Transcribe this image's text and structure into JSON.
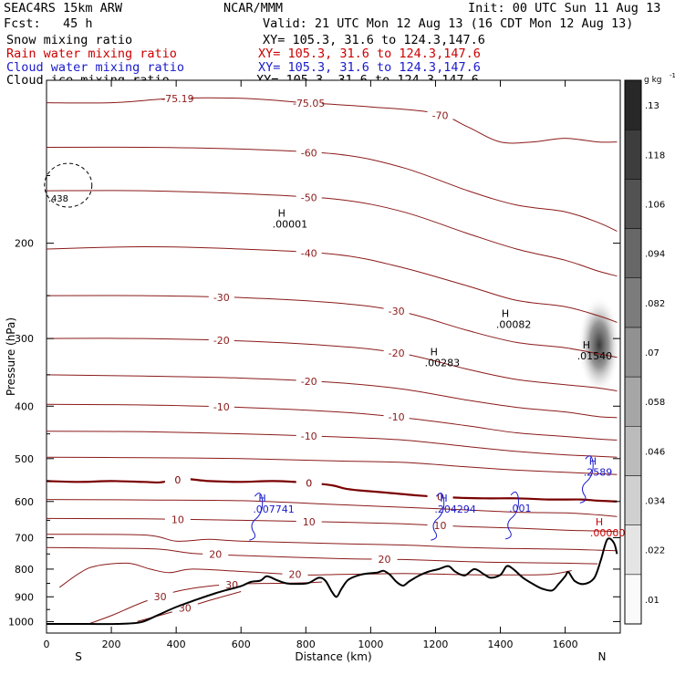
{
  "header": {
    "model": "SEAC4RS 15km ARW",
    "center": "NCAR/MMM",
    "init": "Init: 00 UTC Sun 11 Aug 13",
    "fcst": "Fcst:   45 h",
    "valid": "Valid: 21 UTC Mon 12 Aug 13 (16 CDT Mon 12 Aug 13)",
    "fields": [
      {
        "label": "Snow mixing ratio",
        "xy": "XY= 105.3, 31.6 to 124.3,147.6",
        "color": "#000000"
      },
      {
        "label": "Rain water mixing ratio",
        "xy": "XY= 105.3, 31.6 to 124.3,147.6",
        "color": "#cc0000"
      },
      {
        "label": "Cloud water mixing ratio",
        "xy": "XY= 105.3, 31.6 to 124.3,147.6",
        "color": "#1a1acc"
      },
      {
        "label": "Cloud ice mixing ratio",
        "xy": "XY= 105.3, 31.6 to 124.3,147.6",
        "color": "#000000"
      }
    ]
  },
  "colors": {
    "temperature": "#8b1a1a",
    "freezing": "#7a0000",
    "terrain": "#000000",
    "cloudwater": "#1a1acc",
    "rain": "#cc0000"
  },
  "chart_data": {
    "type": "contour cross-section",
    "xlabel": "Distance (km)",
    "ylabel": "Pressure (hPa)",
    "xlim": [
      0,
      1770
    ],
    "ylim": [
      1050,
      100
    ],
    "x_ticks": [
      0,
      200,
      400,
      600,
      800,
      1000,
      1200,
      1400,
      1600
    ],
    "y_ticks": [
      200,
      300,
      400,
      500,
      600,
      700,
      800,
      900,
      1000
    ],
    "x_end_labels": {
      "left": "S",
      "right": "N"
    },
    "colorbar": {
      "unit": "g kg",
      "unit_exp": "-1",
      "labels": [
        ".01",
        ".022",
        ".034",
        ".046",
        ".058",
        ".07",
        ".082",
        ".094",
        ".106",
        ".118",
        ".13"
      ]
    },
    "terrain": [
      [
        0,
        1010
      ],
      [
        120,
        1010
      ],
      [
        220,
        1010
      ],
      [
        290,
        1003
      ],
      [
        340,
        975
      ],
      [
        400,
        940
      ],
      [
        460,
        912
      ],
      [
        520,
        887
      ],
      [
        560,
        873
      ],
      [
        600,
        860
      ],
      [
        630,
        845
      ],
      [
        660,
        840
      ],
      [
        680,
        825
      ],
      [
        710,
        838
      ],
      [
        740,
        850
      ],
      [
        780,
        852
      ],
      [
        810,
        848
      ],
      [
        840,
        830
      ],
      [
        860,
        840
      ],
      [
        880,
        880
      ],
      [
        895,
        900
      ],
      [
        910,
        870
      ],
      [
        930,
        838
      ],
      [
        960,
        822
      ],
      [
        990,
        815
      ],
      [
        1020,
        812
      ],
      [
        1040,
        806
      ],
      [
        1060,
        820
      ],
      [
        1080,
        845
      ],
      [
        1100,
        858
      ],
      [
        1120,
        842
      ],
      [
        1150,
        822
      ],
      [
        1180,
        808
      ],
      [
        1210,
        800
      ],
      [
        1240,
        790
      ],
      [
        1260,
        808
      ],
      [
        1290,
        822
      ],
      [
        1320,
        800
      ],
      [
        1350,
        818
      ],
      [
        1370,
        830
      ],
      [
        1400,
        820
      ],
      [
        1420,
        790
      ],
      [
        1440,
        800
      ],
      [
        1470,
        830
      ],
      [
        1500,
        852
      ],
      [
        1530,
        870
      ],
      [
        1560,
        876
      ],
      [
        1580,
        852
      ],
      [
        1600,
        825
      ],
      [
        1610,
        810
      ],
      [
        1630,
        842
      ],
      [
        1660,
        852
      ],
      [
        1690,
        830
      ],
      [
        1710,
        770
      ],
      [
        1730,
        705
      ],
      [
        1750,
        715
      ],
      [
        1760,
        750
      ]
    ],
    "isotherms": [
      {
        "label_values": [
          "-75.19",
          "-75.05",
          "-70"
        ],
        "points": [
          [
            0,
            110
          ],
          [
            200,
            110
          ],
          [
            400,
            108
          ],
          [
            600,
            108
          ],
          [
            800,
            110
          ],
          [
            1000,
            112
          ],
          [
            1200,
            115
          ],
          [
            1300,
            122
          ],
          [
            1400,
            130
          ],
          [
            1500,
            130
          ],
          [
            1600,
            128
          ],
          [
            1700,
            130
          ],
          [
            1760,
            130
          ]
        ]
      },
      {
        "label_values": [
          "-60"
        ],
        "points": [
          [
            0,
            133
          ],
          [
            300,
            133
          ],
          [
            600,
            134
          ],
          [
            900,
            137
          ],
          [
            1100,
            145
          ],
          [
            1300,
            160
          ],
          [
            1450,
            170
          ],
          [
            1600,
            175
          ],
          [
            1700,
            183
          ],
          [
            1760,
            190
          ]
        ]
      },
      {
        "label_values": [
          "-50"
        ],
        "points": [
          [
            0,
            160
          ],
          [
            300,
            160
          ],
          [
            600,
            162
          ],
          [
            900,
            166
          ],
          [
            1100,
            175
          ],
          [
            1300,
            192
          ],
          [
            1450,
            205
          ],
          [
            1600,
            215
          ],
          [
            1700,
            225
          ],
          [
            1760,
            230
          ]
        ]
      },
      {
        "label_values": [
          "-40"
        ],
        "points": [
          [
            0,
            205
          ],
          [
            300,
            203
          ],
          [
            600,
            205
          ],
          [
            900,
            210
          ],
          [
            1100,
            222
          ],
          [
            1300,
            240
          ],
          [
            1450,
            255
          ],
          [
            1600,
            262
          ],
          [
            1700,
            272
          ],
          [
            1760,
            280
          ]
        ]
      },
      {
        "label_values": [
          "-30",
          "-30"
        ],
        "points": [
          [
            0,
            250
          ],
          [
            300,
            250
          ],
          [
            600,
            252
          ],
          [
            900,
            258
          ],
          [
            1100,
            268
          ],
          [
            1300,
            290
          ],
          [
            1450,
            305
          ],
          [
            1600,
            312
          ],
          [
            1700,
            320
          ],
          [
            1760,
            325
          ]
        ]
      },
      {
        "label_values": [
          "-20",
          "-20"
        ],
        "points": [
          [
            0,
            300
          ],
          [
            300,
            300
          ],
          [
            600,
            303
          ],
          [
            900,
            310
          ],
          [
            1100,
            320
          ],
          [
            1300,
            342
          ],
          [
            1450,
            357
          ],
          [
            1600,
            365
          ],
          [
            1700,
            370
          ],
          [
            1760,
            375
          ]
        ]
      },
      {
        "label_values": [
          "-20"
        ],
        "points": [
          [
            0,
            350
          ],
          [
            300,
            352
          ],
          [
            600,
            355
          ],
          [
            900,
            362
          ],
          [
            1100,
            372
          ],
          [
            1300,
            390
          ],
          [
            1450,
            402
          ],
          [
            1600,
            410
          ],
          [
            1700,
            418
          ],
          [
            1760,
            420
          ]
        ]
      },
      {
        "label_values": [
          "-10",
          "-10"
        ],
        "points": [
          [
            0,
            397
          ],
          [
            300,
            398
          ],
          [
            600,
            402
          ],
          [
            900,
            410
          ],
          [
            1100,
            420
          ],
          [
            1300,
            435
          ],
          [
            1450,
            448
          ],
          [
            1600,
            455
          ],
          [
            1700,
            460
          ],
          [
            1760,
            462
          ]
        ]
      },
      {
        "label_values": [
          "-10"
        ],
        "points": [
          [
            0,
            445
          ],
          [
            300,
            446
          ],
          [
            600,
            450
          ],
          [
            900,
            456
          ],
          [
            1100,
            462
          ],
          [
            1300,
            475
          ],
          [
            1450,
            485
          ],
          [
            1600,
            492
          ],
          [
            1700,
            495
          ],
          [
            1760,
            497
          ]
        ]
      },
      {
        "label_values": [],
        "points": [
          [
            0,
            497
          ],
          [
            300,
            498
          ],
          [
            600,
            500
          ],
          [
            900,
            505
          ],
          [
            1100,
            508
          ],
          [
            1300,
            518
          ],
          [
            1450,
            525
          ],
          [
            1600,
            530
          ],
          [
            1700,
            533
          ],
          [
            1760,
            535
          ]
        ]
      },
      {
        "label_values": [
          "0",
          "0",
          "0"
        ],
        "freezing": true,
        "points": [
          [
            0,
            550
          ],
          [
            100,
            552
          ],
          [
            200,
            550
          ],
          [
            300,
            552
          ],
          [
            350,
            553
          ],
          [
            420,
            545
          ],
          [
            500,
            550
          ],
          [
            600,
            552
          ],
          [
            700,
            550
          ],
          [
            800,
            554
          ],
          [
            880,
            560
          ],
          [
            920,
            568
          ],
          [
            960,
            572
          ],
          [
            1050,
            578
          ],
          [
            1150,
            585
          ],
          [
            1250,
            590
          ],
          [
            1350,
            592
          ],
          [
            1450,
            592
          ],
          [
            1550,
            595
          ],
          [
            1650,
            595
          ],
          [
            1700,
            598
          ],
          [
            1760,
            600
          ]
        ]
      },
      {
        "label_values": [],
        "points": [
          [
            0,
            595
          ],
          [
            300,
            596
          ],
          [
            600,
            598
          ],
          [
            900,
            608
          ],
          [
            1100,
            615
          ],
          [
            1300,
            622
          ],
          [
            1450,
            628
          ],
          [
            1600,
            630
          ],
          [
            1700,
            635
          ],
          [
            1760,
            640
          ]
        ]
      },
      {
        "label_values": [
          "10",
          "10",
          "10"
        ],
        "points": [
          [
            0,
            645
          ],
          [
            300,
            646
          ],
          [
            600,
            650
          ],
          [
            900,
            655
          ],
          [
            1100,
            660
          ],
          [
            1300,
            668
          ],
          [
            1450,
            672
          ],
          [
            1600,
            678
          ],
          [
            1700,
            680
          ],
          [
            1760,
            682
          ]
        ]
      },
      {
        "label_values": [],
        "points": [
          [
            0,
            690
          ],
          [
            300,
            692
          ],
          [
            400,
            710
          ],
          [
            500,
            705
          ],
          [
            600,
            710
          ],
          [
            900,
            718
          ],
          [
            1100,
            722
          ],
          [
            1300,
            730
          ],
          [
            1450,
            733
          ],
          [
            1600,
            735
          ],
          [
            1700,
            738
          ],
          [
            1760,
            740
          ]
        ]
      },
      {
        "label_values": [
          "20",
          "20"
        ],
        "points": [
          [
            0,
            730
          ],
          [
            200,
            732
          ],
          [
            350,
            735
          ],
          [
            450,
            748
          ],
          [
            600,
            755
          ],
          [
            900,
            765
          ],
          [
            1100,
            768
          ],
          [
            1300,
            775
          ],
          [
            1450,
            778
          ],
          [
            1600,
            780
          ],
          [
            1700,
            782
          ]
        ]
      },
      {
        "label_values": [
          "20"
        ],
        "points": [
          [
            40,
            865
          ],
          [
            100,
            815
          ],
          [
            150,
            790
          ],
          [
            250,
            780
          ],
          [
            320,
            800
          ],
          [
            380,
            812
          ],
          [
            450,
            800
          ],
          [
            600,
            808
          ],
          [
            800,
            820
          ],
          [
            900,
            818
          ],
          [
            1000,
            817
          ],
          [
            1100,
            815
          ],
          [
            1250,
            818
          ],
          [
            1400,
            820
          ],
          [
            1550,
            818
          ],
          [
            1620,
            805
          ]
        ]
      },
      {
        "label_values": [
          "30",
          "30"
        ],
        "points": [
          [
            130,
            1010
          ],
          [
            200,
            975
          ],
          [
            300,
            920
          ],
          [
            400,
            880
          ],
          [
            500,
            860
          ],
          [
            600,
            852
          ],
          [
            700,
            850
          ],
          [
            800,
            848
          ],
          [
            850,
            845
          ]
        ]
      },
      {
        "label_values": [
          "30"
        ],
        "points": [
          [
            280,
            1000
          ],
          [
            400,
            955
          ],
          [
            500,
            915
          ],
          [
            600,
            880
          ]
        ]
      }
    ],
    "maxima": [
      {
        "label": "H",
        "value": ".00001",
        "field": "Snow mixing ratio",
        "x": 680,
        "p": 183
      },
      {
        "label": "H",
        "value": ".00082",
        "field": "Snow mixing ratio",
        "x": 1370,
        "p": 280
      },
      {
        "label": "H",
        "value": ".00283",
        "field": "Snow mixing ratio",
        "x": 1150,
        "p": 330
      },
      {
        "label": "H",
        "value": ".01540",
        "field": "Cloud ice mixing ratio",
        "x": 1620,
        "p": 320
      },
      {
        "label": "H",
        "value": ".2589",
        "field": "Cloud water mixing ratio",
        "x": 1640,
        "p": 525
      },
      {
        "label": "H",
        "value": ".007741",
        "field": "Cloud water mixing ratio",
        "x": 620,
        "p": 615
      },
      {
        "label": "H",
        "value": ".204294",
        "field": "Cloud water mixing ratio",
        "x": 1180,
        "p": 615
      },
      {
        "label": "",
        "value": ".001",
        "field": "Cloud water mixing ratio",
        "x": 1410,
        "p": 612
      },
      {
        "label": "H",
        "value": ".00000",
        "field": "Rain water mixing ratio",
        "x": 1660,
        "p": 680
      }
    ],
    "corner_label": {
      "value": ".438",
      "x": 5,
      "p": 165
    },
    "cloud_ice_shading": {
      "x_range": [
        1640,
        1770
      ],
      "p_range": [
        250,
        380
      ],
      "peak": 0.12
    }
  }
}
